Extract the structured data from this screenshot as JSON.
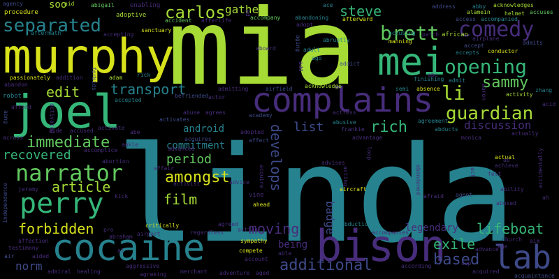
{
  "palette": {
    "background": "#000000",
    "lime": "#a6db36",
    "yellow": "#d8e21b",
    "green": "#62c95e",
    "mint": "#35b779",
    "teal": "#26828e",
    "blue": "#3e4a89",
    "purple": "#472d7b",
    "deep_purple": "#440154",
    "cyan_green": "#1fa187"
  },
  "words": {
    "linda": "linda",
    "mia": "mia",
    "murphy": "murphy",
    "cocaine": "cocaine",
    "bison": "bison",
    "complains": "complains",
    "joel": "joel",
    "mei": "mei",
    "perry": "perry",
    "narrator": "narrator",
    "lab": "lab",
    "comedy": "comedy",
    "brett": "brett",
    "opening": "opening",
    "separated": "separated",
    "carlos": "carlos",
    "steve": "steve",
    "guardian": "guardian",
    "li": "li",
    "sammy": "sammy",
    "immediate": "immediate",
    "amongst": "amongst",
    "edit": "edit",
    "transport": "transport",
    "article": "article",
    "recovered": "recovered",
    "forbidden": "forbidden",
    "film": "film",
    "period": "period",
    "moving": "moving",
    "additional": "additional",
    "based": "based",
    "exile": "exile",
    "lifeboat": "lifeboat",
    "rich": "rich",
    "list": "list",
    "discussion": "discussion",
    "develops": "develops",
    "android": "android",
    "commitment": "commitment",
    "norm": "norm",
    "legendary": "legendary",
    "badge": "badge",
    "gather": "gather",
    "being": "being",
    "soo": "soo",
    "agency": "agency",
    "procedure": "procedure",
    "aid": "aid",
    "abigail": "abigail",
    "enabling": "enabling",
    "adoptive": "adoptive",
    "accident": "accident",
    "afterlife": "afterlife",
    "accompany": "accompany",
    "abandoning": "abandoning",
    "afterward": "afterward",
    "ace": "ace",
    "address": "address",
    "abby": "abby",
    "acknowledges": "acknowledges",
    "access": "access",
    "accompanied": "accompanied",
    "alamein": "alamein",
    "helmet": "helmet",
    "accuses": "accuses",
    "aftermath": "aftermath",
    "accepting": "accepting",
    "sanctuary": "sanctuary",
    "acquaintance": "acquaintance",
    "adopt": "adopt",
    "abruptly": "abruptly",
    "manning": "manning",
    "accusing": "accusing",
    "patch": "patch",
    "african": "african",
    "airplane": "airplane",
    "accept": "accept",
    "accepts": "accepts",
    "conductor": "conductor",
    "admits": "admits",
    "aboard": "aboard",
    "adult": "adult",
    "aging": "aging",
    "addict": "addict",
    "ago": "ago",
    "passionately": "passionately",
    "addition": "addition",
    "forbids": "forbids",
    "adam": "adam",
    "rick": "rick",
    "abandon": "abandon",
    "robot": "robot",
    "accepted": "accepted",
    "befriended": "befriended",
    "actor": "actor",
    "admitting": "admitting",
    "airfield": "airfield",
    "acknowledge": "acknowledge",
    "finishing": "finishing",
    "abu": "abu",
    "admit": "admit",
    "aaron": "aaron",
    "semi": "semi",
    "absence": "absence",
    "activity": "activity",
    "zhang": "zhang",
    "afford": "afford",
    "abuse": "abuse",
    "agrees": "agrees",
    "academy": "academy",
    "actress": "actress",
    "abusive": "abusive",
    "frankie": "frankie",
    "agreement": "agreement",
    "abducts": "abducts",
    "acid": "acid",
    "aang": "aang",
    "activated": "activated",
    "activate": "activate",
    "activates": "activates",
    "abe": "abe",
    "affect": "affect",
    "advantage": "advantage",
    "adopted": "adopted",
    "aide": "aide",
    "accused": "accused",
    "across": "across",
    "acquires": "acquires",
    "accomplice": "accomplice",
    "ankle": "ankle",
    "monica": "monica",
    "actually": "actually",
    "advanced": "advanced",
    "acquire": "acquire",
    "abortion": "abortion",
    "affair": "affair",
    "activist": "activist",
    "advice": "advice",
    "vine": "vine",
    "ahead": "ahead",
    "acting": "acting",
    "loop": "loop",
    "advises": "advises",
    "aircraft": "aircraft",
    "abandoned": "abandoned",
    "afraid": "afraid",
    "act": "act",
    "actual": "actual",
    "achieve": "achieve",
    "felt": "felt",
    "agent": "agent",
    "ability": "ability",
    "abused": "abused",
    "ah": "ah",
    "accidentally": "accidentally",
    "jeremy": "jeremy",
    "independence": "independence",
    "kick": "kick",
    "pro": "pro",
    "abraham": "abraham",
    "critically": "critically",
    "regardless": "regardless",
    "agreed": "agreed",
    "abduction": "abduction",
    "affection": "affection",
    "airport": "airport",
    "action": "action",
    "accompanies": "accompanies",
    "church": "church",
    "aim": "aim",
    "testimony": "testimony",
    "sympathy": "sympathy",
    "advance": "advance",
    "age": "age",
    "air": "air",
    "aided": "aided",
    "compete": "compete",
    "account": "account",
    "able": "able",
    "cup": "cup",
    "admiral": "admiral",
    "healing": "healing",
    "aggressive": "aggressive",
    "merchant": "merchant",
    "adventure": "adventure",
    "aged": "aged",
    "according": "according",
    "acquired": "acquired",
    "agreeing": "agreeing",
    "al": "al",
    "add": "add",
    "ad": "ad",
    "ab": "ab"
  }
}
